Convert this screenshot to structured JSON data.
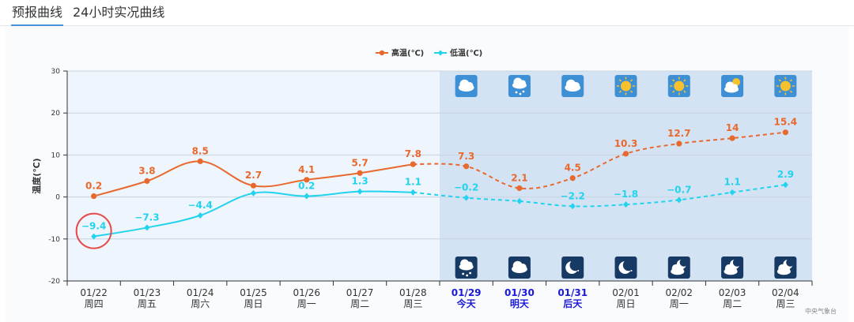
{
  "tabs": [
    {
      "label": "预报曲线",
      "active": true
    },
    {
      "label": "24小时实况曲线",
      "active": false
    }
  ],
  "credit": "中央气象台",
  "chart_data": {
    "type": "line",
    "ylabel": "温度(℃)",
    "ylim": [
      -20,
      30
    ],
    "yticks": [
      30,
      20,
      10,
      0,
      -10,
      -20
    ],
    "grid": true,
    "legend_position": "top-center",
    "forecast_start_index": 7,
    "categories": [
      {
        "date": "01/22",
        "weekday": "周四",
        "highlight": false
      },
      {
        "date": "01/23",
        "weekday": "周五",
        "highlight": false
      },
      {
        "date": "01/24",
        "weekday": "周六",
        "highlight": false
      },
      {
        "date": "01/25",
        "weekday": "周日",
        "highlight": false
      },
      {
        "date": "01/26",
        "weekday": "周一",
        "highlight": false
      },
      {
        "date": "01/27",
        "weekday": "周二",
        "highlight": false
      },
      {
        "date": "01/28",
        "weekday": "周三",
        "highlight": false
      },
      {
        "date": "01/29",
        "weekday": "今天",
        "highlight": true
      },
      {
        "date": "01/30",
        "weekday": "明天",
        "highlight": true
      },
      {
        "date": "01/31",
        "weekday": "后天",
        "highlight": true
      },
      {
        "date": "02/01",
        "weekday": "周日",
        "highlight": false
      },
      {
        "date": "02/02",
        "weekday": "周一",
        "highlight": false
      },
      {
        "date": "02/03",
        "weekday": "周二",
        "highlight": false
      },
      {
        "date": "02/04",
        "weekday": "周三",
        "highlight": false
      }
    ],
    "series": [
      {
        "name": "高温(℃)",
        "color": "#e8692e",
        "values": [
          0.2,
          3.8,
          8.5,
          2.7,
          4.1,
          5.7,
          7.8,
          7.3,
          2.1,
          4.5,
          10.3,
          12.7,
          14,
          15.4
        ],
        "labels": [
          "0.2",
          "3.8",
          "8.5",
          "2.7",
          "4.1",
          "5.7",
          "7.8",
          "7.3",
          "2.1",
          "4.5",
          "10.3",
          "12.7",
          "14",
          "15.4"
        ]
      },
      {
        "name": "低温(℃)",
        "color": "#22d3ee",
        "values": [
          -9.4,
          -7.3,
          -4.4,
          0.9,
          0.2,
          1.3,
          1.1,
          -0.2,
          -1,
          -2.2,
          -1.8,
          -0.7,
          1.1,
          2.9
        ],
        "labels": [
          "−9.4",
          "−7.3",
          "−4.4",
          "",
          "0.2",
          "1.3",
          "1.1",
          "−0.2",
          "",
          "−2.2",
          "−1.8",
          "−0.7",
          "1.1",
          "2.9"
        ]
      }
    ],
    "day_icons": [
      "cloudy",
      "light-snow",
      "cloudy",
      "sunny",
      "sunny",
      "partly-cloudy",
      "sunny"
    ],
    "night_icons": [
      "light-snow",
      "cloudy",
      "clear-night",
      "clear-night",
      "partly-cloudy-night",
      "partly-cloudy-night",
      "partly-cloudy-night"
    ],
    "highlighted_point": {
      "series": "低温(℃)",
      "index": 0,
      "marker": "circle",
      "color": "#e84a4a"
    }
  }
}
